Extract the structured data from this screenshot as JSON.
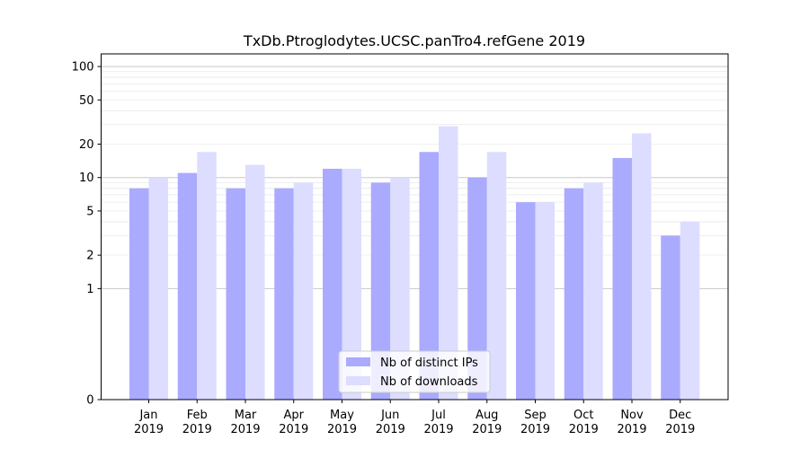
{
  "chart_data": {
    "type": "bar",
    "title": "TxDb.Ptroglodytes.UCSC.panTro4.refGene 2019",
    "xlabel": "",
    "ylabel": "",
    "yscale": "symlog",
    "ylim": [
      0,
      130
    ],
    "yticks": [
      0,
      1,
      2,
      5,
      10,
      20,
      50,
      100
    ],
    "categories": [
      [
        "Jan",
        "2019"
      ],
      [
        "Feb",
        "2019"
      ],
      [
        "Mar",
        "2019"
      ],
      [
        "Apr",
        "2019"
      ],
      [
        "May",
        "2019"
      ],
      [
        "Jun",
        "2019"
      ],
      [
        "Jul",
        "2019"
      ],
      [
        "Aug",
        "2019"
      ],
      [
        "Sep",
        "2019"
      ],
      [
        "Oct",
        "2019"
      ],
      [
        "Nov",
        "2019"
      ],
      [
        "Dec",
        "2019"
      ]
    ],
    "series": [
      {
        "name": "Nb of distinct IPs",
        "color": "#aaaaff",
        "values": [
          8,
          11,
          8,
          8,
          12,
          9,
          17,
          10,
          6,
          8,
          15,
          3
        ]
      },
      {
        "name": "Nb of downloads",
        "color": "#ddddff",
        "values": [
          10,
          17,
          13,
          9,
          12,
          10,
          29,
          17,
          6,
          9,
          25,
          4
        ]
      }
    ],
    "legend_position": "bottom-center"
  }
}
